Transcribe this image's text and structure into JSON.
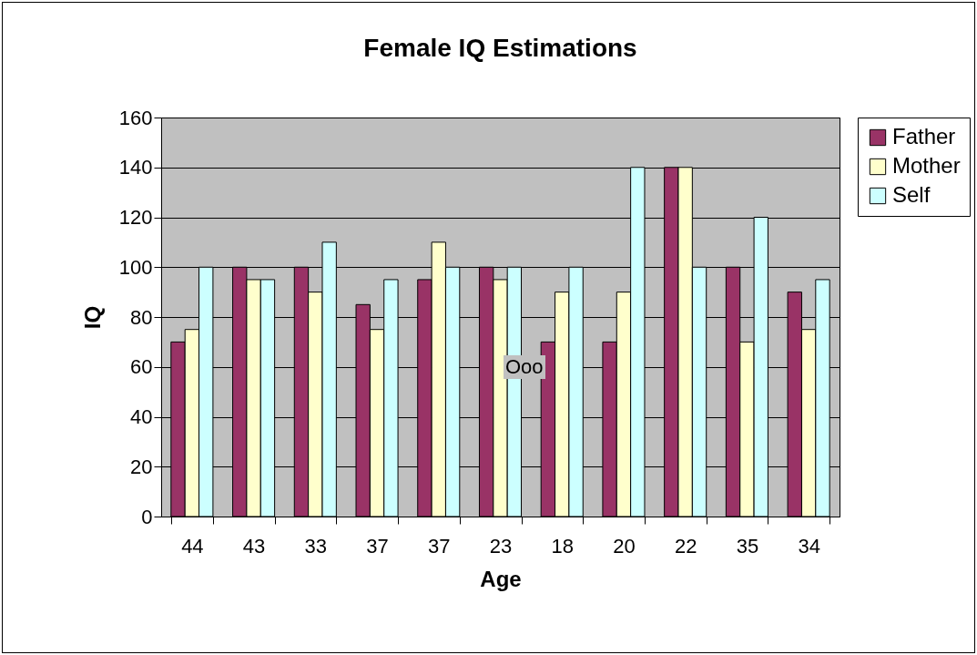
{
  "chart_data": {
    "type": "bar",
    "title": "Female IQ Estimations",
    "xlabel": "Age",
    "ylabel": "IQ",
    "categories": [
      "44",
      "43",
      "33",
      "37",
      "37",
      "23",
      "18",
      "20",
      "22",
      "35",
      "34"
    ],
    "series": [
      {
        "name": "Father",
        "color": "#993366",
        "values": [
          70,
          100,
          100,
          85,
          95,
          100,
          70,
          70,
          140,
          100,
          90
        ]
      },
      {
        "name": "Mother",
        "color": "#ffffcc",
        "values": [
          75,
          95,
          90,
          75,
          110,
          95,
          90,
          90,
          140,
          70,
          75
        ]
      },
      {
        "name": "Self",
        "color": "#ccffff",
        "values": [
          100,
          95,
          110,
          95,
          100,
          100,
          100,
          140,
          100,
          120,
          95
        ]
      }
    ],
    "ylim": [
      0,
      160
    ],
    "yticks": [
      0,
      20,
      40,
      60,
      80,
      100,
      120,
      140,
      160
    ],
    "grid": "y",
    "legend": "right",
    "annotations": [
      "Ooo"
    ]
  }
}
